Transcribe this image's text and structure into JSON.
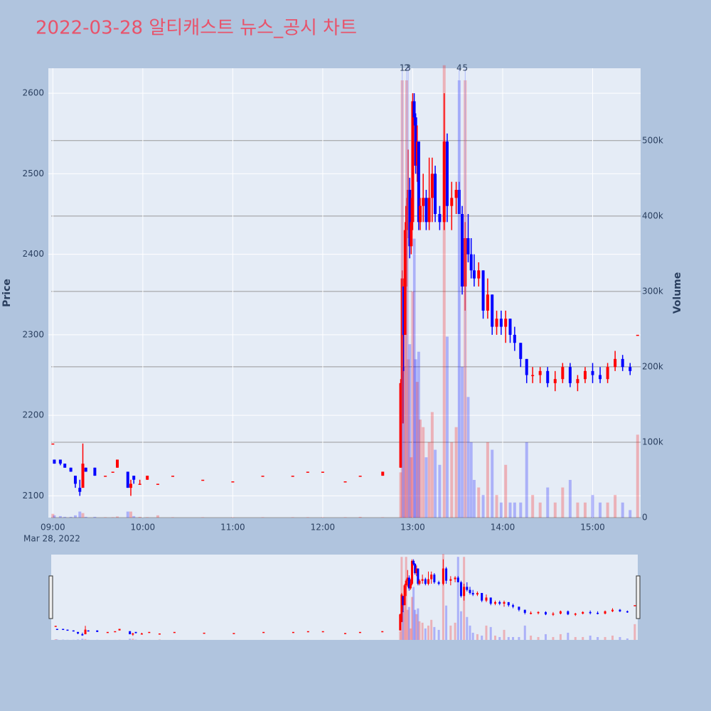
{
  "chart_data": {
    "type": "candlestick",
    "title": "2022-03-28 알티캐스트 뉴스_공시 차트",
    "ylabel": "Price",
    "y2label": "Volume",
    "x_sublabel": "Mar 28, 2022",
    "increasing_color": "#ff0000",
    "decreasing_color": "#0000ff",
    "grid": true,
    "xlim": [
      "08:57",
      "15:32"
    ],
    "xticks": [
      "09:00",
      "10:00",
      "11:00",
      "12:00",
      "13:00",
      "14:00",
      "15:00"
    ],
    "ylim": [
      2073,
      2631
    ],
    "yticks": [
      2100,
      2200,
      2300,
      2400,
      2500,
      2600
    ],
    "y2lim": [
      0,
      596000
    ],
    "y2ticks": [
      0,
      {
        "value": 100000,
        "label": "100k"
      },
      {
        "value": 200000,
        "label": "200k"
      },
      {
        "value": 300000,
        "label": "300k"
      },
      {
        "value": 400000,
        "label": "400k"
      },
      {
        "value": 500000,
        "label": "500k"
      }
    ],
    "annotations": [
      {
        "x": "12:53",
        "label": "1"
      },
      {
        "x": "12:56",
        "label": "2"
      },
      {
        "x": "12:57",
        "label": "3"
      },
      {
        "x": "13:31",
        "label": "4"
      },
      {
        "x": "13:35",
        "label": "5"
      }
    ],
    "x": [
      "09:00",
      "09:01",
      "09:05",
      "09:08",
      "09:12",
      "09:15",
      "09:18",
      "09:20",
      "09:22",
      "09:28",
      "09:35",
      "09:40",
      "09:43",
      "09:50",
      "09:52",
      "09:54",
      "09:58",
      "10:03",
      "10:10",
      "10:20",
      "10:40",
      "11:00",
      "11:20",
      "11:40",
      "11:50",
      "12:00",
      "12:15",
      "12:25",
      "12:40",
      "12:52",
      "12:53",
      "12:54",
      "12:55",
      "12:56",
      "12:57",
      "12:58",
      "12:59",
      "13:00",
      "13:01",
      "13:02",
      "13:03",
      "13:04",
      "13:05",
      "13:07",
      "13:09",
      "13:11",
      "13:13",
      "13:15",
      "13:18",
      "13:21",
      "13:23",
      "13:26",
      "13:29",
      "13:31",
      "13:33",
      "13:35",
      "13:37",
      "13:39",
      "13:41",
      "13:44",
      "13:47",
      "13:50",
      "13:53",
      "13:56",
      "13:59",
      "14:02",
      "14:05",
      "14:08",
      "14:12",
      "14:16",
      "14:20",
      "14:25",
      "14:30",
      "14:35",
      "14:40",
      "14:45",
      "14:50",
      "14:55",
      "15:00",
      "15:05",
      "15:10",
      "15:15",
      "15:20",
      "15:25",
      "15:30"
    ],
    "open": [
      2165,
      2145,
      2145,
      2140,
      2135,
      2125,
      2110,
      2110,
      2135,
      2135,
      2125,
      2130,
      2135,
      2130,
      2110,
      2125,
      2115,
      2120,
      2115,
      2125,
      2120,
      2118,
      2125,
      2125,
      2130,
      2130,
      2118,
      2125,
      2125,
      2135,
      2190,
      2360,
      2300,
      2430,
      2460,
      2480,
      2410,
      2440,
      2590,
      2570,
      2510,
      2540,
      2440,
      2460,
      2470,
      2440,
      2470,
      2500,
      2450,
      2440,
      2540,
      2460,
      2470,
      2480,
      2450,
      2360,
      2420,
      2400,
      2380,
      2370,
      2380,
      2330,
      2350,
      2310,
      2320,
      2310,
      2320,
      2300,
      2290,
      2270,
      2250,
      2250,
      2255,
      2240,
      2245,
      2260,
      2240,
      2245,
      2255,
      2250,
      2245,
      2260,
      2270,
      2260,
      2300
    ],
    "high": [
      2165,
      2145,
      2145,
      2140,
      2135,
      2125,
      2120,
      2165,
      2135,
      2135,
      2125,
      2130,
      2145,
      2130,
      2120,
      2125,
      2120,
      2125,
      2115,
      2125,
      2120,
      2118,
      2125,
      2125,
      2130,
      2130,
      2118,
      2125,
      2130,
      2245,
      2380,
      2360,
      2440,
      2470,
      2530,
      2495,
      2470,
      2600,
      2600,
      2575,
      2560,
      2540,
      2470,
      2500,
      2480,
      2520,
      2520,
      2510,
      2460,
      2600,
      2550,
      2490,
      2490,
      2490,
      2460,
      2440,
      2450,
      2420,
      2400,
      2390,
      2380,
      2370,
      2350,
      2330,
      2330,
      2330,
      2320,
      2310,
      2290,
      2270,
      2260,
      2260,
      2260,
      2255,
      2265,
      2265,
      2250,
      2260,
      2265,
      2260,
      2265,
      2280,
      2275,
      2265,
      2300
    ],
    "low": [
      2165,
      2140,
      2138,
      2135,
      2130,
      2110,
      2100,
      2110,
      2130,
      2125,
      2125,
      2130,
      2135,
      2110,
      2100,
      2115,
      2115,
      2120,
      2115,
      2125,
      2120,
      2118,
      2125,
      2125,
      2130,
      2130,
      2118,
      2125,
      2125,
      2135,
      2190,
      2255,
      2300,
      2360,
      2420,
      2395,
      2400,
      2430,
      2560,
      2500,
      2490,
      2430,
      2430,
      2440,
      2430,
      2430,
      2440,
      2440,
      2430,
      2430,
      2440,
      2430,
      2450,
      2450,
      2350,
      2330,
      2390,
      2370,
      2360,
      2360,
      2320,
      2320,
      2300,
      2300,
      2300,
      2290,
      2290,
      2280,
      2260,
      2240,
      2240,
      2240,
      2235,
      2230,
      2240,
      2235,
      2230,
      2240,
      2240,
      2240,
      2240,
      2255,
      2255,
      2250,
      2300
    ],
    "close": [
      2165,
      2140,
      2140,
      2135,
      2130,
      2115,
      2105,
      2140,
      2130,
      2125,
      2125,
      2130,
      2145,
      2110,
      2115,
      2120,
      2115,
      2125,
      2115,
      2125,
      2120,
      2118,
      2125,
      2125,
      2130,
      2130,
      2118,
      2125,
      2130,
      2240,
      2370,
      2300,
      2430,
      2460,
      2480,
      2410,
      2440,
      2590,
      2570,
      2510,
      2540,
      2440,
      2460,
      2470,
      2440,
      2470,
      2500,
      2450,
      2440,
      2540,
      2460,
      2470,
      2480,
      2450,
      2360,
      2420,
      2400,
      2380,
      2370,
      2380,
      2330,
      2350,
      2310,
      2320,
      2310,
      2320,
      2300,
      2290,
      2270,
      2250,
      2250,
      2255,
      2240,
      2245,
      2260,
      2240,
      2245,
      2255,
      2250,
      2245,
      2260,
      2270,
      2260,
      2255,
      2300
    ],
    "volume": [
      5000,
      3000,
      2000,
      1000,
      1000,
      3000,
      8000,
      6000,
      1000,
      1000,
      500,
      500,
      1500,
      8000,
      8000,
      2000,
      1000,
      500,
      3000,
      500,
      500,
      500,
      500,
      500,
      500,
      500,
      500,
      1000,
      500,
      60000,
      580000,
      200000,
      380000,
      580000,
      210000,
      230000,
      80000,
      300000,
      370000,
      210000,
      180000,
      220000,
      130000,
      120000,
      80000,
      100000,
      140000,
      90000,
      70000,
      600000,
      240000,
      100000,
      120000,
      580000,
      200000,
      580000,
      160000,
      100000,
      50000,
      40000,
      30000,
      100000,
      90000,
      30000,
      20000,
      70000,
      20000,
      20000,
      20000,
      100000,
      30000,
      20000,
      40000,
      20000,
      40000,
      50000,
      20000,
      20000,
      30000,
      20000,
      20000,
      30000,
      20000,
      10000,
      110000
    ]
  }
}
